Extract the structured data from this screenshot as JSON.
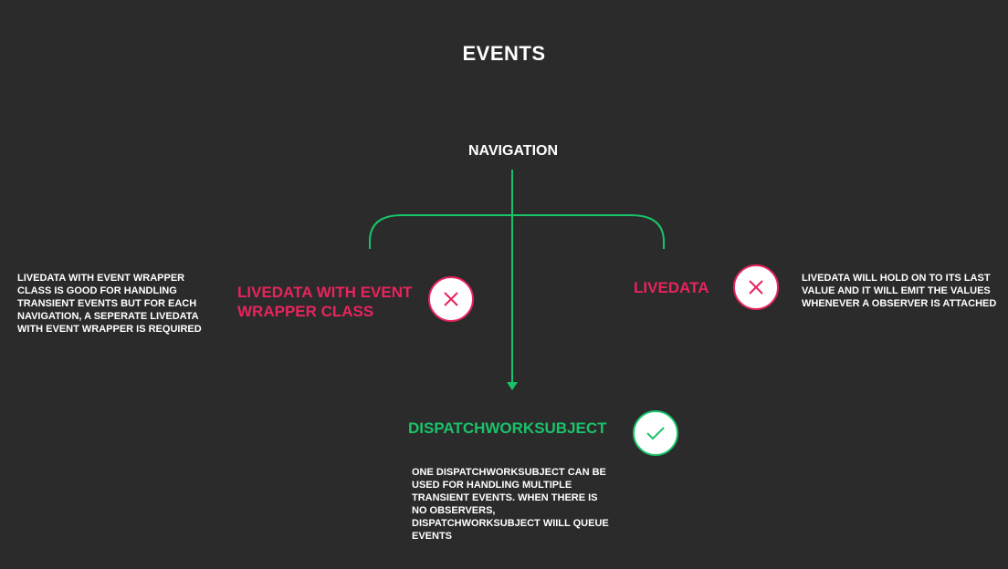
{
  "title": "EVENTS",
  "root": {
    "label": "NAVIGATION"
  },
  "options": {
    "livedata_event_wrapper": {
      "label_line1": "LIVEDATA WITH EVENT",
      "label_line2": "WRAPPER CLASS",
      "verdict_icon": "x-icon",
      "note": [
        "LIVEDATA WITH EVENT WRAPPER",
        "CLASS IS GOOD FOR HANDLING",
        "TRANSIENT EVENTS BUT FOR EACH",
        "NAVIGATION, A SEPERATE LIVEDATA",
        "WITH EVENT WRAPPER IS REQUIRED"
      ]
    },
    "livedata": {
      "label": "LIVEDATA",
      "verdict_icon": "x-icon",
      "note": [
        "LIVEDATA WILL HOLD ON TO ITS LAST",
        "VALUE AND IT WILL EMIT THE VALUES",
        "WHENEVER A OBSERVER IS ATTACHED"
      ]
    },
    "dispatch": {
      "label": "DISPATCHWORKSUBJECT",
      "verdict_icon": "check-icon",
      "note": [
        "ONE DISPATCHWORKSUBJECT CAN BE",
        "USED FOR HANDLING MULTIPLE",
        "TRANSIENT EVENTS. WHEN THERE IS",
        "NO OBSERVERS,",
        "DISPATCHWORKSUBJECT WIILL QUEUE",
        "EVENTS"
      ]
    }
  },
  "colors": {
    "background": "#2b2b2b",
    "rejected": "#e8245c",
    "accepted": "#19c36a",
    "text": "#ffffff"
  }
}
